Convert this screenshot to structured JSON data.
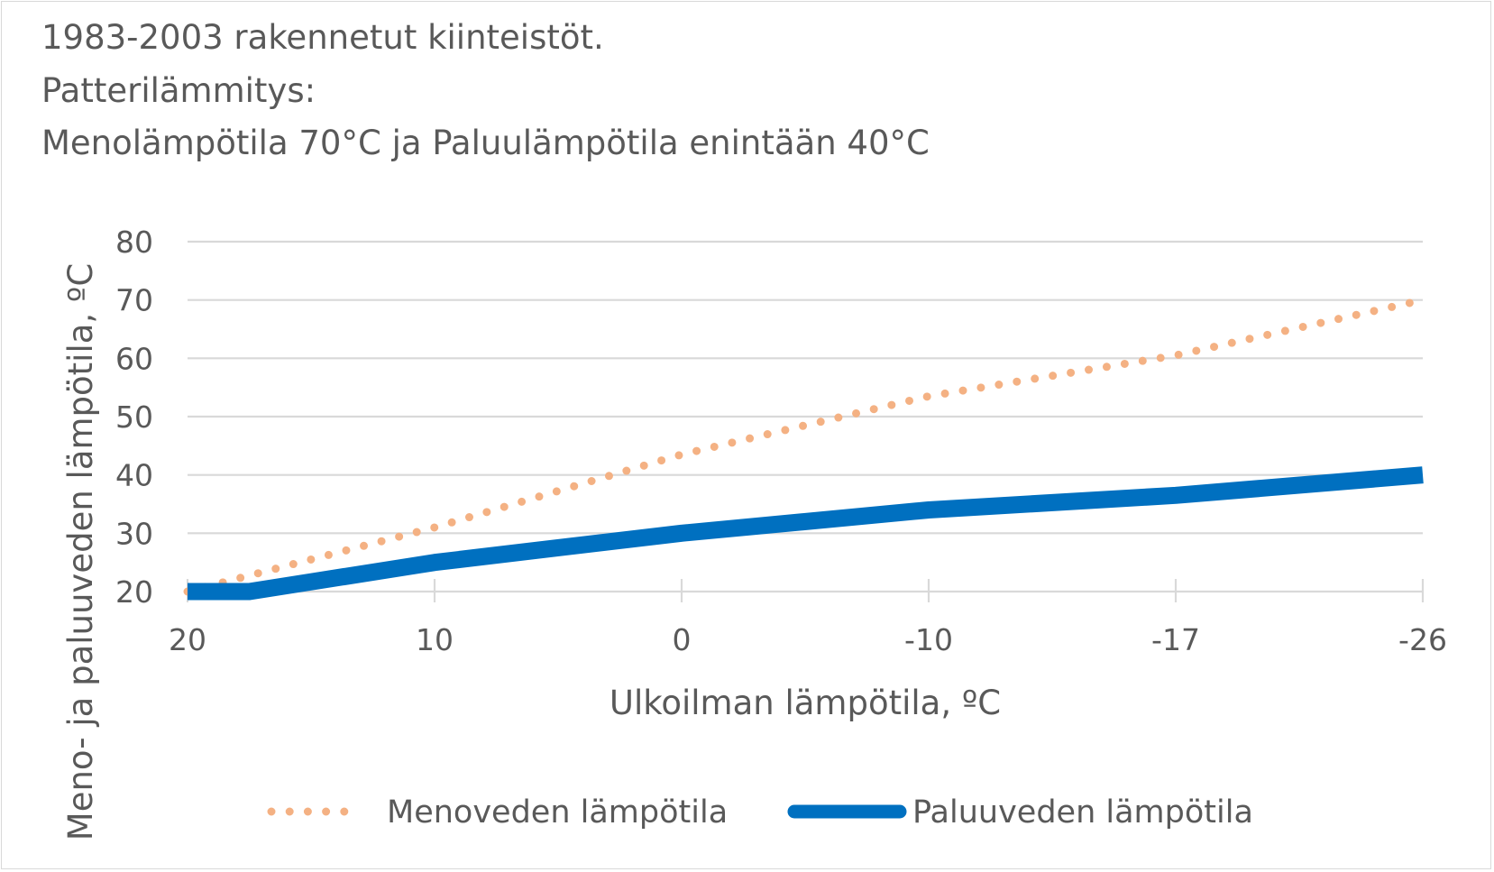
{
  "chart_data": {
    "type": "line",
    "title_lines": [
      "1983-2003 rakennetut kiinteistöt.",
      "Patterilämmitys:",
      "Menolämpötila 70°C ja Paluulämpötila enintään 40°C"
    ],
    "xlabel": "Ulkoilman lämpötila, ºC",
    "ylabel": "Meno- ja paluuveden lämpötila, ºC",
    "categories": [
      "20",
      "10",
      "0",
      "-10",
      "-17",
      "-26"
    ],
    "category_values": [
      20,
      10,
      0,
      -10,
      -17,
      -26
    ],
    "ylim": [
      20,
      80
    ],
    "yticks": [
      "20",
      "30",
      "40",
      "50",
      "60",
      "70",
      "80"
    ],
    "grid": true,
    "legend_position": "bottom",
    "series": [
      {
        "name": "Menoveden lämpötila",
        "style": "dotted",
        "color": "#F4B183",
        "points": [
          [
            20,
            20
          ],
          [
            10,
            31
          ],
          [
            0,
            43.5
          ],
          [
            -10,
            53.5
          ],
          [
            -17,
            60.5
          ],
          [
            -26,
            70
          ]
        ]
      },
      {
        "name": "Paluuveden lämpötila",
        "style": "solid-thick",
        "color": "#0070C0",
        "points": [
          [
            20,
            20
          ],
          [
            17.5,
            20
          ],
          [
            10,
            25
          ],
          [
            0,
            30
          ],
          [
            -10,
            34
          ],
          [
            -17,
            36.5
          ],
          [
            -26,
            40
          ]
        ]
      }
    ]
  }
}
